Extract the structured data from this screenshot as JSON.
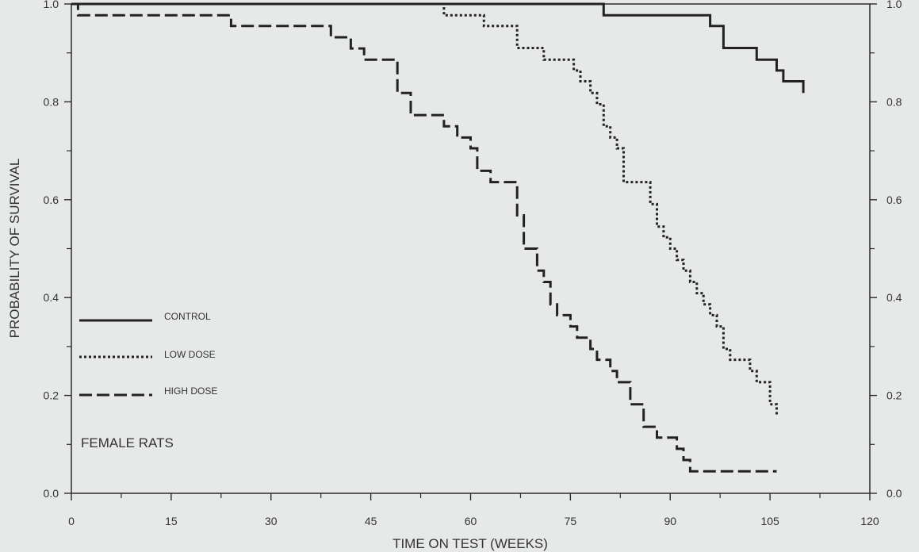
{
  "chart_data": {
    "type": "line",
    "step": true,
    "title": "",
    "annotation": "FEMALE RATS",
    "xlabel": "TIME ON TEST (WEEKS)",
    "ylabel": "PROBABILITY OF SURVIVAL",
    "xlim": [
      0,
      120
    ],
    "ylim": [
      0,
      1.0
    ],
    "xticks": [
      0,
      15,
      30,
      45,
      60,
      75,
      90,
      105,
      120
    ],
    "yticks": [
      0.0,
      0.2,
      0.4,
      0.6,
      0.8,
      1.0
    ],
    "xtick_labels": [
      "0",
      "15",
      "30",
      "45",
      "60",
      "75",
      "90",
      "105",
      "120"
    ],
    "ytick_labels": [
      "0.0",
      "0.2",
      "0.4",
      "0.6",
      "0.8",
      "1.0"
    ],
    "right_axis_labels": true,
    "grid": false,
    "legend_position": "left-middle",
    "series": [
      {
        "name": "CONTROL",
        "style": "solid",
        "x": [
          0,
          80,
          96,
          98,
          103,
          106,
          107,
          110
        ],
        "y": [
          1.0,
          0.977,
          0.955,
          0.91,
          0.886,
          0.864,
          0.842,
          0.818
        ]
      },
      {
        "name": "LOW DOSE",
        "style": "dotted",
        "x": [
          0,
          56,
          62,
          67,
          71,
          75.5,
          76.5,
          78,
          79,
          80,
          81,
          82,
          83,
          87,
          88,
          89,
          90,
          91,
          92,
          93,
          94,
          95,
          96,
          97,
          98,
          99,
          102,
          103,
          105,
          106
        ],
        "y": [
          1.0,
          0.977,
          0.955,
          0.91,
          0.886,
          0.864,
          0.842,
          0.818,
          0.795,
          0.75,
          0.727,
          0.705,
          0.636,
          0.591,
          0.545,
          0.523,
          0.5,
          0.477,
          0.455,
          0.432,
          0.409,
          0.386,
          0.364,
          0.341,
          0.295,
          0.273,
          0.25,
          0.227,
          0.182,
          0.159
        ]
      },
      {
        "name": "HIGH DOSE",
        "style": "dashed",
        "x": [
          0,
          1,
          18,
          24,
          39,
          42,
          44,
          49,
          51,
          56,
          58,
          60,
          61,
          63,
          67,
          68,
          70,
          71,
          72,
          73,
          75,
          76,
          78,
          79,
          81,
          82,
          84,
          86,
          88,
          91,
          92,
          93,
          94,
          106
        ],
        "y": [
          1.0,
          0.977,
          0.977,
          0.955,
          0.932,
          0.909,
          0.886,
          0.818,
          0.773,
          0.75,
          0.727,
          0.705,
          0.659,
          0.636,
          0.568,
          0.5,
          0.455,
          0.432,
          0.386,
          0.364,
          0.341,
          0.318,
          0.295,
          0.273,
          0.25,
          0.227,
          0.182,
          0.136,
          0.114,
          0.091,
          0.068,
          0.045,
          0.045,
          0.045
        ]
      }
    ]
  }
}
